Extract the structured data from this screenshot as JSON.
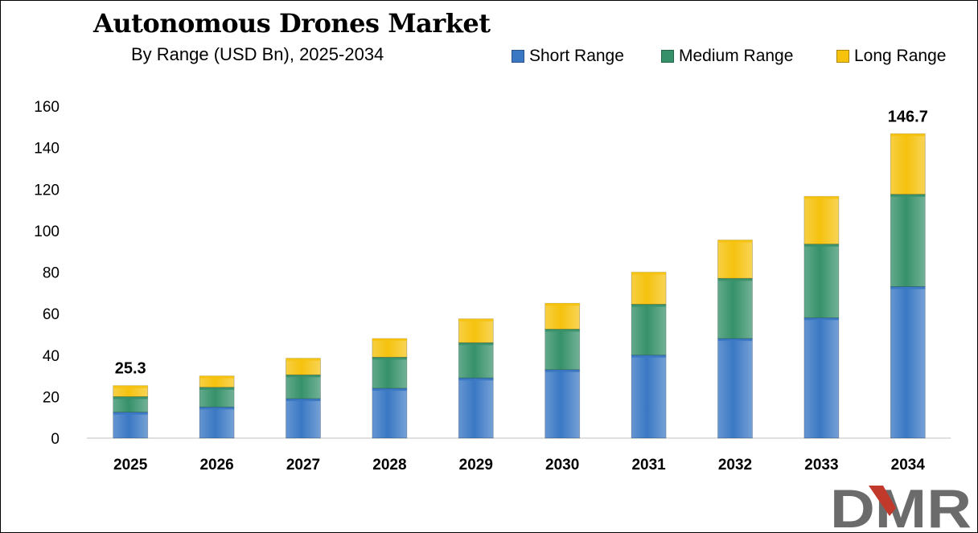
{
  "chart_data": {
    "type": "bar",
    "stacked": true,
    "title": "Autonomous Drones Market",
    "subtitle": "By Range (USD Bn), 2025-2034",
    "categories": [
      "2025",
      "2026",
      "2027",
      "2028",
      "2029",
      "2030",
      "2031",
      "2032",
      "2033",
      "2034"
    ],
    "series": [
      {
        "name": "Short Range",
        "color": "#3a78c4",
        "values": [
          12.5,
          15,
          19,
          24,
          29,
          33,
          40,
          48,
          58,
          73
        ]
      },
      {
        "name": "Medium Range",
        "color": "#36916a",
        "values": [
          7.5,
          9.5,
          11.5,
          15,
          17,
          19.5,
          24.5,
          29,
          35.5,
          44.5
        ]
      },
      {
        "name": "Long Range",
        "color": "#f5c20e",
        "values": [
          5.3,
          5.5,
          8,
          9,
          11.5,
          12.5,
          15.5,
          18.5,
          23,
          29.2
        ]
      }
    ],
    "data_labels": [
      {
        "category": "2025",
        "text": "25.3"
      },
      {
        "category": "2034",
        "text": "146.7"
      }
    ],
    "yticks": [
      "0",
      "20",
      "40",
      "60",
      "80",
      "100",
      "120",
      "140",
      "160"
    ],
    "ylim": [
      0,
      160
    ],
    "xlabel": "",
    "ylabel": "",
    "grid": false,
    "legend": "top-right"
  },
  "logo": {
    "text": "DMR",
    "dark_color": "#6b6b6b",
    "accent_color": "#c0392b"
  }
}
